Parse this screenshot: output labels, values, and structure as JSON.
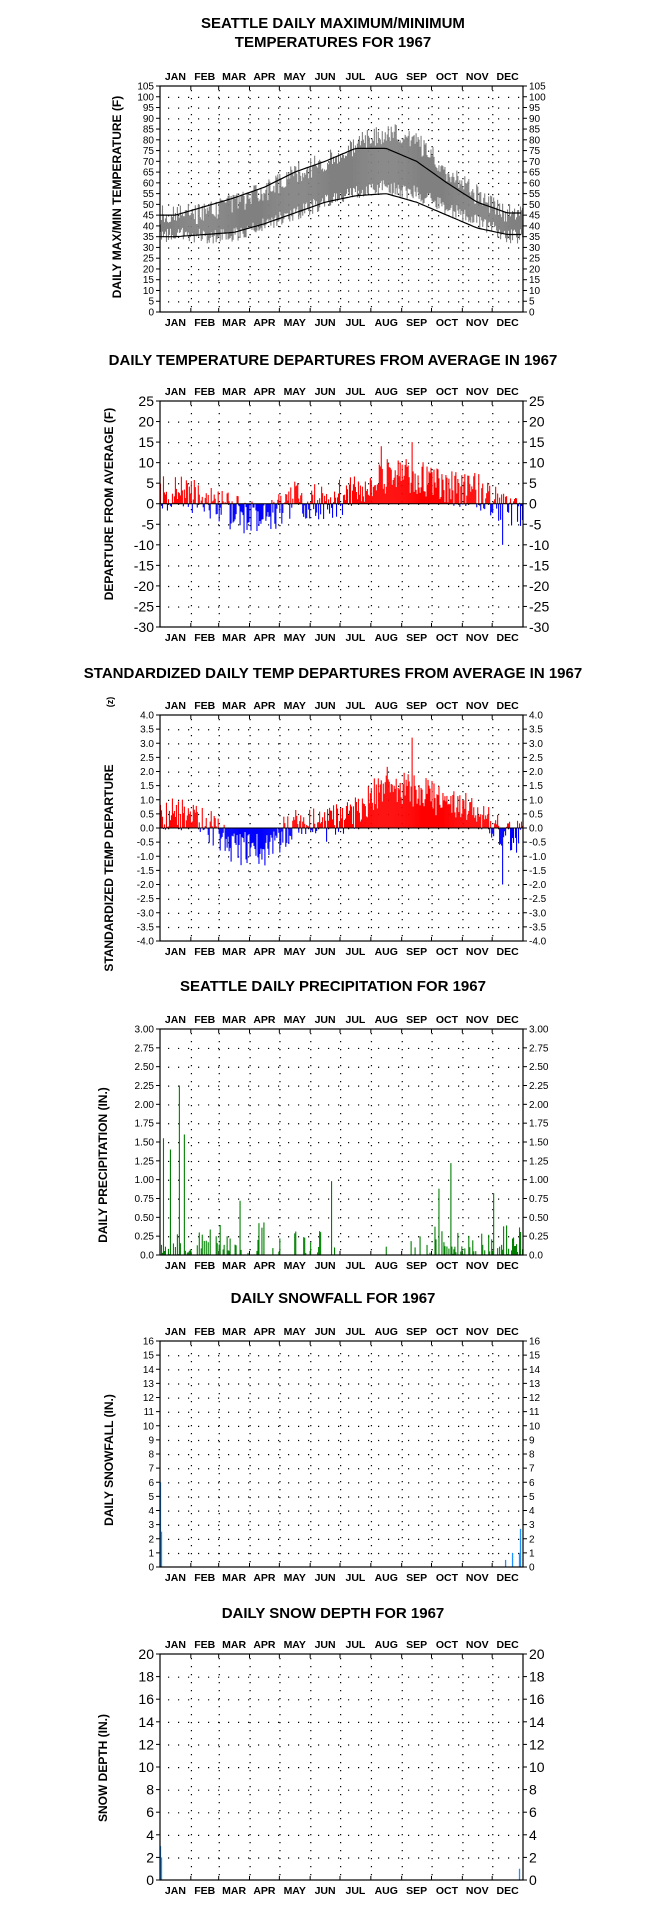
{
  "months": [
    "JAN",
    "FEB",
    "MAR",
    "APR",
    "MAY",
    "JUN",
    "JUL",
    "AUG",
    "SEP",
    "OCT",
    "NOV",
    "DEC"
  ],
  "colors": {
    "temp_band": "#808080",
    "normal_lines": "#000000",
    "positive": "#ff0000",
    "negative": "#0000ff",
    "precip": "#008000",
    "snow": "#1e90ff"
  },
  "chart_data": [
    {
      "id": "maxmin",
      "type": "area",
      "title_lines": [
        "SEATTLE DAILY MAXIMUM/MINIMUM",
        "TEMPERATURES FOR 1967"
      ],
      "ylabel": "DAILY MAX/MIN TEMPERATURE (F)",
      "ylim": [
        0,
        105
      ],
      "yticks": [
        0,
        5,
        10,
        15,
        20,
        25,
        30,
        35,
        40,
        45,
        50,
        55,
        60,
        65,
        70,
        75,
        80,
        85,
        90,
        95,
        100,
        105
      ],
      "ytick_labels": [
        "0",
        "5",
        "10",
        "15",
        "20",
        "25",
        "30",
        "35",
        "40",
        "45",
        "50",
        "55",
        "60",
        "65",
        "70",
        "75",
        "80",
        "85",
        "90",
        "95",
        "100",
        "105"
      ],
      "grid": "dotted",
      "series": [
        {
          "style": "daily max/min band",
          "monthly_max": [
            45,
            46,
            50,
            56,
            64,
            70,
            78,
            84,
            79,
            65,
            54,
            46
          ],
          "monthly_min": [
            36,
            35,
            36,
            41,
            46,
            51,
            56,
            58,
            55,
            48,
            42,
            35
          ]
        },
        {
          "style": "normal high line",
          "monthly": [
            45,
            49,
            53,
            58,
            65,
            70,
            76,
            76,
            70,
            60,
            51,
            46
          ]
        },
        {
          "style": "normal low line",
          "monthly": [
            35,
            36,
            37,
            41,
            46,
            51,
            54,
            55,
            51,
            45,
            39,
            36
          ]
        }
      ]
    },
    {
      "id": "dep",
      "type": "bar",
      "title_lines": [
        "DAILY TEMPERATURE DEPARTURES FROM AVERAGE IN 1967"
      ],
      "ylabel": "DEPARTURE FROM AVERAGE (F)",
      "ylim": [
        -30,
        25
      ],
      "yticks": [
        -30,
        -25,
        -20,
        -15,
        -10,
        -5,
        0,
        5,
        10,
        15,
        20,
        25
      ],
      "ytick_labels": [
        "-30",
        "-25",
        "-20",
        "-15",
        "-10",
        "-5",
        "0",
        "5",
        "10",
        "15",
        "20",
        "25"
      ],
      "grid": "dotted",
      "monthly_mean_departure": [
        2.5,
        1,
        -2.5,
        -3.5,
        1,
        0.5,
        2.5,
        7,
        6,
        4,
        3,
        -1
      ],
      "extremes": [
        {
          "month": "AUG",
          "value": 14
        },
        {
          "month": "SEP",
          "value": 15
        },
        {
          "month": "DEC",
          "value": -10
        }
      ]
    },
    {
      "id": "std",
      "type": "bar",
      "title_lines": [
        "STANDARDIZED DAILY TEMP DEPARTURES FROM AVERAGE IN 1967"
      ],
      "ylabel": "STANDARDIZED TEMP DEPARTURE",
      "ylabel_unit": "(z)",
      "ylim": [
        -4,
        4
      ],
      "yticks": [
        -4,
        -3.5,
        -3,
        -2.5,
        -2,
        -1.5,
        -1,
        -0.5,
        0,
        0.5,
        1,
        1.5,
        2,
        2.5,
        3,
        3.5,
        4
      ],
      "ytick_labels": [
        "-4.0",
        "-3.5",
        "-3.0",
        "-2.5",
        "-2.0",
        "-1.5",
        "-1.0",
        "-0.5",
        "0.0",
        "0.5",
        "1.0",
        "1.5",
        "2.0",
        "2.5",
        "3.0",
        "3.5",
        "4.0"
      ],
      "grid": "dotted",
      "monthly_mean_departure": [
        0.5,
        0.2,
        -0.7,
        -0.8,
        0.25,
        0.1,
        0.5,
        1.6,
        1.3,
        0.9,
        0.6,
        -0.3
      ],
      "extremes": [
        {
          "month": "SEP",
          "value": 3.2
        },
        {
          "month": "DEC",
          "value": -2
        }
      ]
    },
    {
      "id": "precip",
      "type": "bar",
      "title_lines": [
        "SEATTLE DAILY PRECIPITATION FOR 1967"
      ],
      "ylabel": "DAILY PRECIPITATION (IN.)",
      "ylim": [
        0,
        3
      ],
      "yticks": [
        0,
        0.25,
        0.5,
        0.75,
        1,
        1.25,
        1.5,
        1.75,
        2,
        2.25,
        2.5,
        2.75,
        3
      ],
      "ytick_labels": [
        "0.0",
        "0.25",
        "0.50",
        "0.75",
        "1.00",
        "1.25",
        "1.50",
        "1.75",
        "2.00",
        "2.25",
        "2.50",
        "2.75",
        "3.00"
      ],
      "grid": "dotted",
      "notable_days": [
        {
          "day": 3,
          "value": 1.55
        },
        {
          "day": 10,
          "value": 1.4
        },
        {
          "day": 19,
          "value": 2.25
        },
        {
          "day": 24,
          "value": 1.6
        },
        {
          "day": 80,
          "value": 0.72
        },
        {
          "day": 172,
          "value": 0.98
        },
        {
          "day": 280,
          "value": 0.88
        },
        {
          "day": 292,
          "value": 1.22
        },
        {
          "day": 335,
          "value": 0.82
        }
      ]
    },
    {
      "id": "snowfall",
      "type": "bar",
      "title_lines": [
        "DAILY SNOWFALL FOR 1967"
      ],
      "ylabel": "DAILY SNOWFALL (IN.)",
      "ylim": [
        0,
        16
      ],
      "yticks": [
        0,
        1,
        2,
        3,
        4,
        5,
        6,
        7,
        8,
        9,
        10,
        11,
        12,
        13,
        14,
        15,
        16
      ],
      "ytick_labels": [
        "0",
        "1",
        "2",
        "3",
        "4",
        "5",
        "6",
        "7",
        "8",
        "9",
        "10",
        "11",
        "12",
        "13",
        "14",
        "15",
        "16"
      ],
      "grid": "dotted",
      "days": [
        {
          "day": 1,
          "value": 6
        },
        {
          "day": 2,
          "value": 2.5
        },
        {
          "day": 348,
          "value": 0.5
        },
        {
          "day": 355,
          "value": 1
        },
        {
          "day": 362,
          "value": 1
        },
        {
          "day": 363,
          "value": 2.7
        }
      ]
    },
    {
      "id": "snowdepth",
      "type": "bar",
      "title_lines": [
        "DAILY SNOW DEPTH FOR 1967"
      ],
      "ylabel": "SNOW DEPTH (IN.)",
      "ylim": [
        0,
        20
      ],
      "yticks": [
        0,
        2,
        4,
        6,
        8,
        10,
        12,
        14,
        16,
        18,
        20
      ],
      "ytick_labels": [
        "0",
        "2",
        "4",
        "6",
        "8",
        "10",
        "12",
        "14",
        "16",
        "18",
        "20"
      ],
      "grid": "dotted",
      "days": [
        {
          "day": 1,
          "value": 3
        },
        {
          "day": 2,
          "value": 2
        },
        {
          "day": 362,
          "value": 1
        }
      ]
    }
  ]
}
